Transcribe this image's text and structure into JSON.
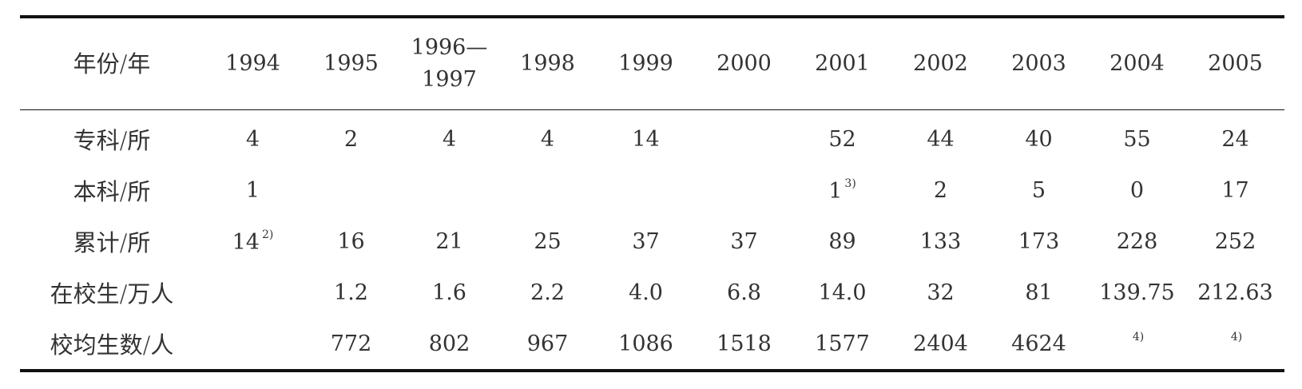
{
  "table": {
    "header": [
      "年份/年",
      "1994",
      "1995",
      [
        "1996—",
        "1997"
      ],
      "1998",
      "1999",
      "2000",
      "2001",
      "2002",
      "2003",
      "2004",
      "2005"
    ],
    "rows": [
      [
        "专科/所",
        "4",
        "2",
        "4",
        "4",
        "14",
        null,
        "52",
        "44",
        "40",
        "55",
        "24"
      ],
      [
        "本科/所",
        "1",
        null,
        null,
        null,
        null,
        null,
        {
          "text": "1",
          "note": "3)"
        },
        "2",
        "5",
        "0",
        "17"
      ],
      [
        "累计/所",
        {
          "text": "14",
          "note": "2)"
        },
        "16",
        "21",
        "25",
        "37",
        "37",
        "89",
        "133",
        "173",
        "228",
        "252"
      ],
      [
        "在校生/万人",
        null,
        "1.2",
        "1.6",
        "2.2",
        "4.0",
        "6.8",
        "14.0",
        "32",
        "81",
        "139.75",
        "212.63"
      ],
      [
        "校均生数/人",
        null,
        "772",
        "802",
        "967",
        "1086",
        "1518",
        "1577",
        "2404",
        "4624",
        {
          "note": "4)"
        },
        {
          "note": "4)"
        }
      ]
    ]
  }
}
